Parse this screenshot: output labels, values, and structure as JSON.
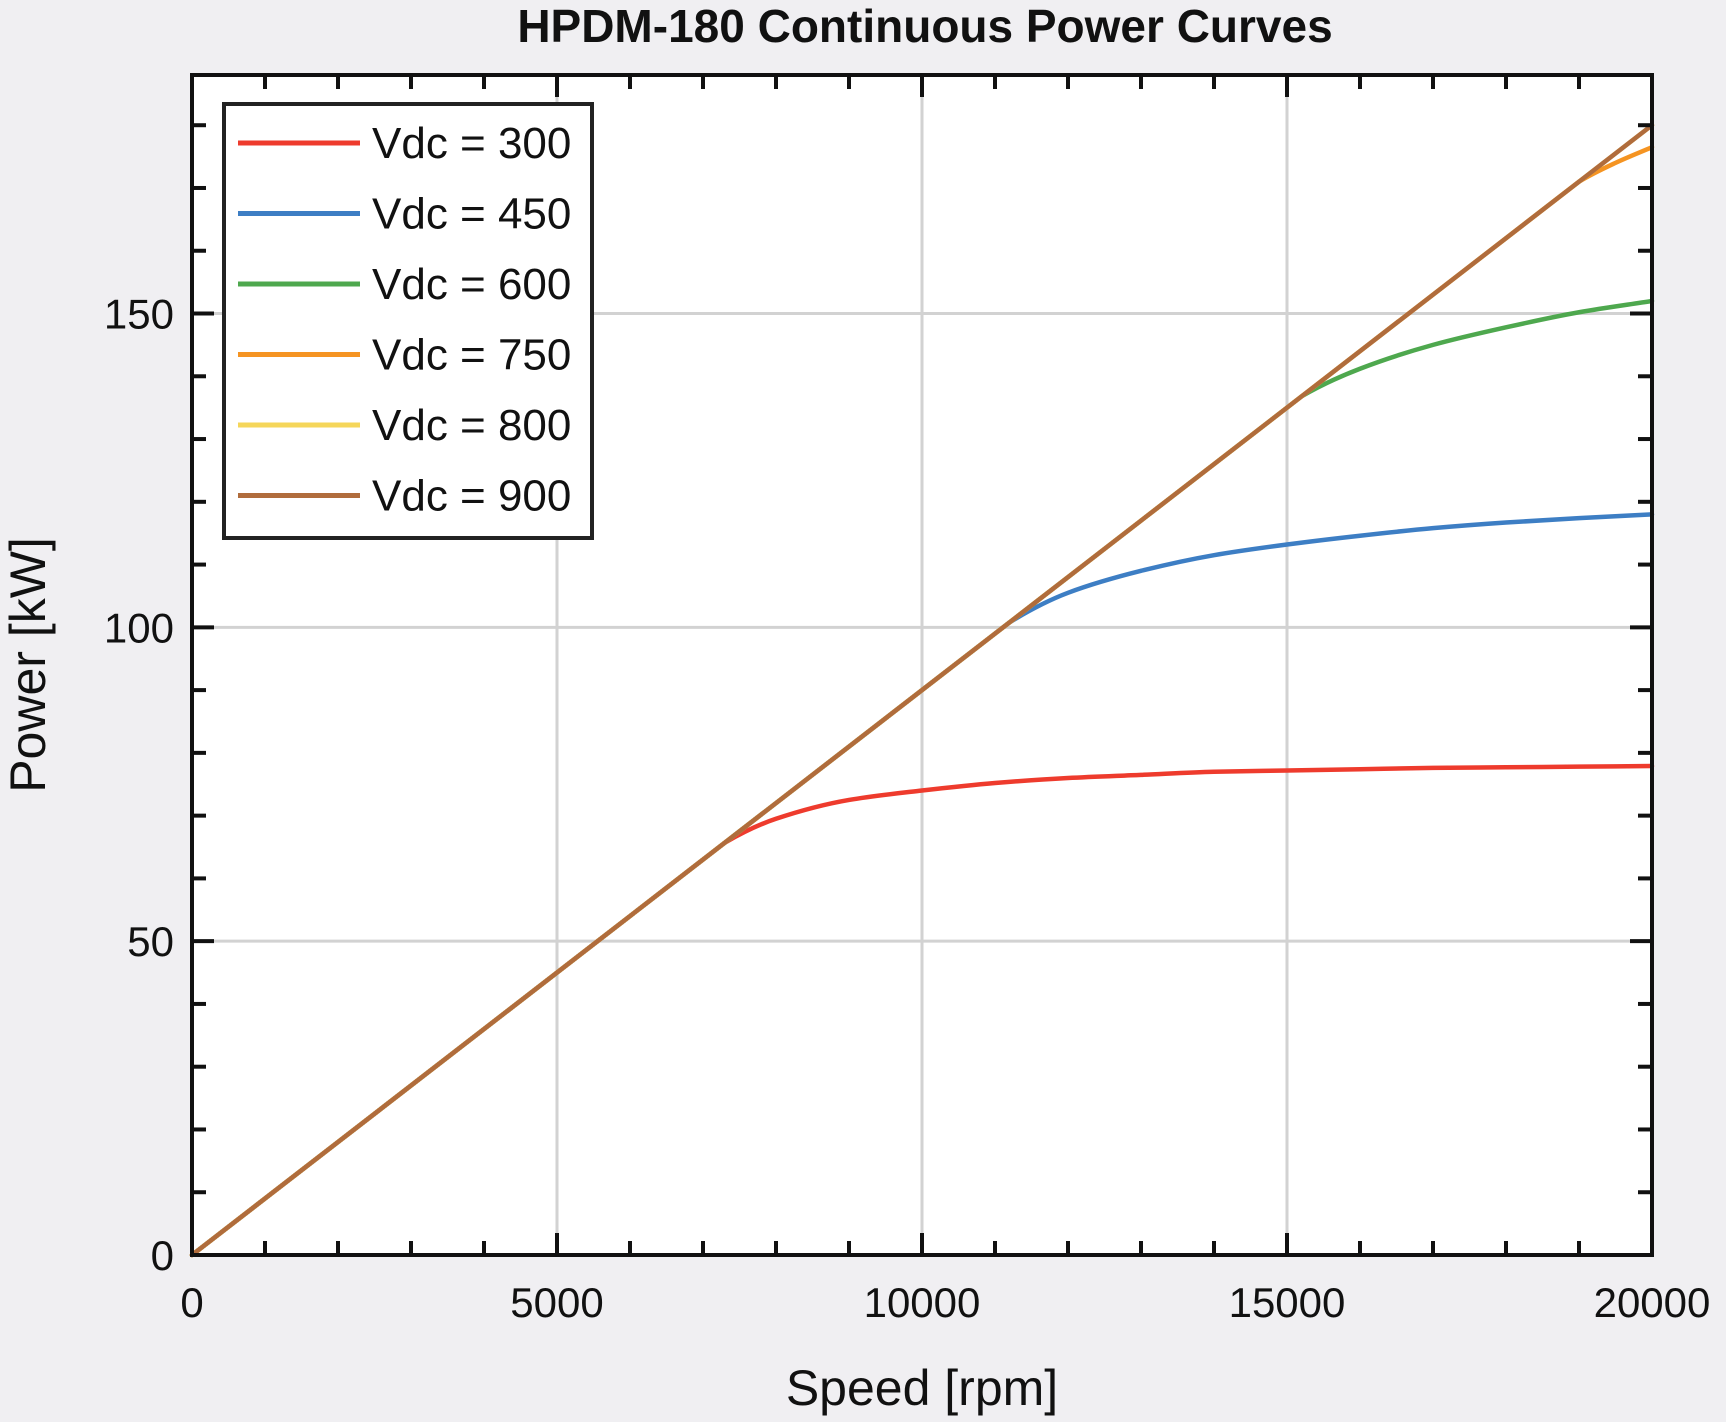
{
  "chart_data": {
    "type": "line",
    "title": "HPDM-180 Continuous Power Curves",
    "xlabel": "Speed [rpm]",
    "ylabel": "Power [kW]",
    "xlim": [
      0,
      20000
    ],
    "ylim": [
      0,
      188
    ],
    "x_ticks": [
      0,
      5000,
      10000,
      15000,
      20000
    ],
    "x_tick_labels": [
      "0",
      "5000",
      "10000",
      "15000",
      "20000"
    ],
    "y_ticks": [
      0,
      50,
      100,
      150
    ],
    "y_tick_labels": [
      "0",
      "50",
      "100",
      "150"
    ],
    "grid": true,
    "legend_position": "top-left",
    "series": [
      {
        "name": "Vdc = 300",
        "color": "#ee3b2d",
        "x": [
          0,
          7300,
          8000,
          9000,
          10000,
          11000,
          12000,
          13000,
          14000,
          15000,
          16000,
          17000,
          18000,
          19000,
          20000
        ],
        "y": [
          0,
          65.7,
          69.5,
          72.5,
          74.0,
          75.2,
          76.0,
          76.5,
          77.0,
          77.2,
          77.4,
          77.6,
          77.7,
          77.8,
          77.9
        ]
      },
      {
        "name": "Vdc = 450",
        "color": "#3d7ec4",
        "x": [
          0,
          11200,
          12000,
          13000,
          14000,
          15000,
          16000,
          17000,
          18000,
          19000,
          20000
        ],
        "y": [
          0,
          100.8,
          105.5,
          109.0,
          111.5,
          113.2,
          114.6,
          115.8,
          116.7,
          117.4,
          118.0
        ]
      },
      {
        "name": "Vdc = 600",
        "color": "#4ea84e",
        "x": [
          0,
          15200,
          16000,
          17000,
          18000,
          19000,
          20000
        ],
        "y": [
          0,
          136.8,
          141.2,
          145.0,
          147.8,
          150.2,
          152.0
        ]
      },
      {
        "name": "Vdc = 750",
        "color": "#f59422",
        "x": [
          0,
          19000,
          19500,
          20000
        ],
        "y": [
          0,
          171.0,
          174.0,
          176.5
        ]
      },
      {
        "name": "Vdc = 800",
        "color": "#f5d65a",
        "x": [
          0,
          20000
        ],
        "y": [
          0,
          180
        ]
      },
      {
        "name": "Vdc = 900",
        "color": "#b06c3c",
        "x": [
          0,
          20000
        ],
        "y": [
          0,
          180
        ]
      }
    ]
  }
}
